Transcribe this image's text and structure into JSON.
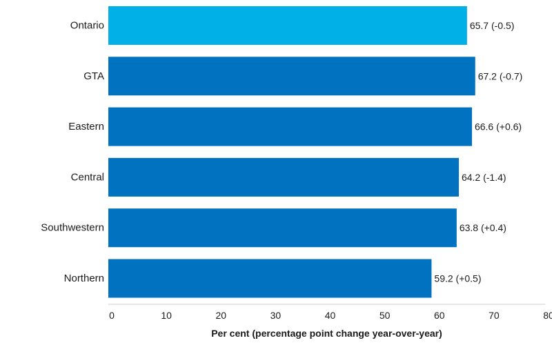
{
  "chart_data": {
    "type": "bar",
    "orientation": "horizontal",
    "categories": [
      "Ontario",
      "GTA",
      "Eastern",
      "Central",
      "Southwestern",
      "Northern"
    ],
    "values": [
      65.7,
      67.2,
      66.6,
      64.2,
      63.8,
      59.2
    ],
    "changes": [
      "-0.5",
      "-0.7",
      "+0.6",
      "-1.4",
      "+0.4",
      "+0.5"
    ],
    "data_labels": [
      "65.7 (-0.5)",
      "67.2 (-0.7)",
      "66.6 (+0.6)",
      "64.2 (-1.4)",
      "63.8 (+0.4)",
      "59.2 (+0.5)"
    ],
    "highlight_category": "Ontario",
    "colors": {
      "highlight": "#00b0e6",
      "default": "#0072c0",
      "axis": "#cccccc"
    },
    "xlim": [
      0,
      80
    ],
    "xticks": [
      0,
      10,
      20,
      30,
      40,
      50,
      60,
      70,
      80
    ],
    "tick_labels": [
      "0",
      "10",
      "20",
      "30",
      "40",
      "50",
      "60",
      "70",
      "80"
    ],
    "xlabel": "Per cent (percentage point change year-over-year)",
    "ylabel": "",
    "title": "",
    "grid": false
  }
}
